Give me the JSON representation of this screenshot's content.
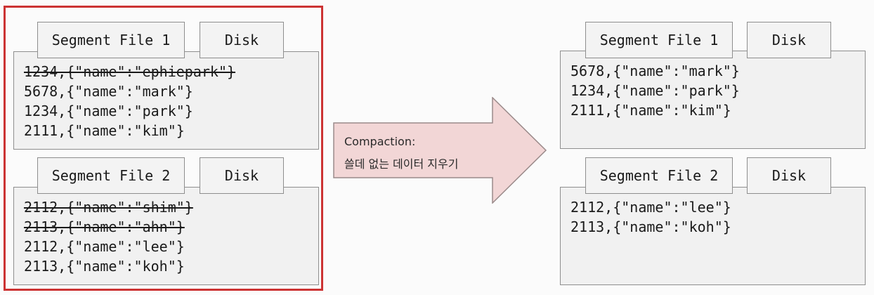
{
  "left": {
    "segment1": {
      "title": "Segment File 1",
      "disk_label": "Disk",
      "rows": [
        {
          "text": "1234,{\"name\":\"ephiepark\"}",
          "struck": true
        },
        {
          "text": "5678,{\"name\":\"mark\"}",
          "struck": false
        },
        {
          "text": "1234,{\"name\":\"park\"}",
          "struck": false
        },
        {
          "text": "2111,{\"name\":\"kim\"}",
          "struck": false
        }
      ]
    },
    "segment2": {
      "title": "Segment File 2",
      "disk_label": "Disk",
      "rows": [
        {
          "text": "2112,{\"name\":\"shim\"}",
          "struck": true
        },
        {
          "text": "2113,{\"name\":\"ahn\"}",
          "struck": true
        },
        {
          "text": "2112,{\"name\":\"lee\"}",
          "struck": false
        },
        {
          "text": "2113,{\"name\":\"koh\"}",
          "struck": false
        }
      ]
    }
  },
  "arrow": {
    "line1": "Compaction:",
    "line2": "쓸데 없는 데이터 지우기"
  },
  "right": {
    "segment1": {
      "title": "Segment File 1",
      "disk_label": "Disk",
      "rows": [
        {
          "text": "5678,{\"name\":\"mark\"}",
          "struck": false
        },
        {
          "text": "1234,{\"name\":\"park\"}",
          "struck": false
        },
        {
          "text": "2111,{\"name\":\"kim\"}",
          "struck": false
        }
      ]
    },
    "segment2": {
      "title": "Segment File 2",
      "disk_label": "Disk",
      "rows": [
        {
          "text": "2112,{\"name\":\"lee\"}",
          "struck": false
        },
        {
          "text": "2113,{\"name\":\"koh\"}",
          "struck": false
        }
      ]
    }
  },
  "colors": {
    "highlight_border": "#cc3333",
    "arrow_fill": "#f2d6d6",
    "arrow_stroke": "#9a8a8a"
  }
}
